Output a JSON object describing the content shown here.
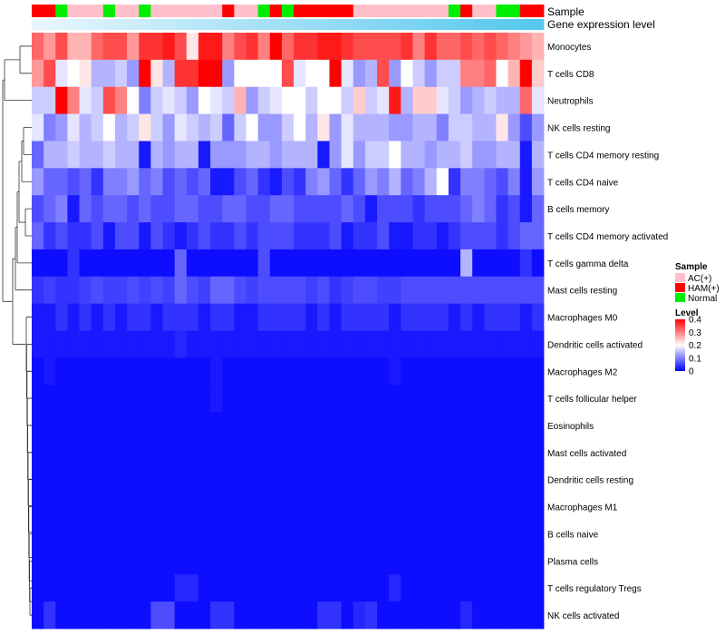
{
  "chart_data": {
    "type": "heatmap",
    "title": "",
    "xlabel": "",
    "ylabel": "",
    "annotation_rows": [
      "Sample",
      "Gene expression level"
    ],
    "sample_annotation": [
      "HAM(+)",
      "HAM(+)",
      "Normal",
      "AC(+)",
      "AC(+)",
      "AC(+)",
      "Normal",
      "AC(+)",
      "AC(+)",
      "Normal",
      "AC(+)",
      "AC(+)",
      "AC(+)",
      "AC(+)",
      "AC(+)",
      "AC(+)",
      "HAM(+)",
      "AC(+)",
      "AC(+)",
      "Normal",
      "HAM(+)",
      "Normal",
      "HAM(+)",
      "HAM(+)",
      "HAM(+)",
      "HAM(+)",
      "HAM(+)",
      "AC(+)",
      "AC(+)",
      "AC(+)",
      "AC(+)",
      "AC(+)",
      "AC(+)",
      "AC(+)",
      "AC(+)",
      "Normal",
      "HAM(+)",
      "AC(+)",
      "AC(+)",
      "Normal",
      "Normal",
      "HAM(+)",
      "HAM(+)"
    ],
    "rows": [
      "Monocytes",
      "T cells CD8",
      "Neutrophils",
      "NK cells resting",
      "T cells CD4 memory resting",
      "T cells CD4 naive",
      "B cells memory",
      "T cells CD4 memory activated",
      "T cells gamma delta",
      "Mast cells resting",
      "Macrophages M0",
      "Dendritic cells activated",
      "Macrophages M2",
      "T cells follicular helper",
      "Eosinophils",
      "Mast cells activated",
      "Dendritic cells resting",
      "Macrophages M1",
      "B cells naive",
      "Plasma cells",
      "T cells regulatory  Tregs",
      "NK cells activated"
    ],
    "color_scale": {
      "min": 0,
      "max": 0.4,
      "low": "#0000ff",
      "mid": "#ffffff",
      "high": "#ff0000",
      "mid_value": 0.2
    },
    "values": [
      [
        0.32,
        0.28,
        0.34,
        0.26,
        0.26,
        0.32,
        0.34,
        0.34,
        0.28,
        0.36,
        0.36,
        0.38,
        0.34,
        0.22,
        0.38,
        0.38,
        0.3,
        0.34,
        0.36,
        0.3,
        0.4,
        0.32,
        0.36,
        0.36,
        0.38,
        0.38,
        0.36,
        0.34,
        0.34,
        0.34,
        0.34,
        0.36,
        0.3,
        0.36,
        0.32,
        0.32,
        0.34,
        0.32,
        0.34,
        0.32,
        0.3,
        0.28,
        0.26
      ],
      [
        0.28,
        0.34,
        0.18,
        0.2,
        0.22,
        0.14,
        0.14,
        0.16,
        0.12,
        0.4,
        0.22,
        0.14,
        0.36,
        0.36,
        0.4,
        0.4,
        0.12,
        0.2,
        0.2,
        0.2,
        0.2,
        0.34,
        0.18,
        0.2,
        0.2,
        0.4,
        0.18,
        0.12,
        0.14,
        0.34,
        0.12,
        0.2,
        0.16,
        0.12,
        0.16,
        0.16,
        0.3,
        0.3,
        0.32,
        0.2,
        0.26,
        0.4,
        0.24
      ],
      [
        0.16,
        0.16,
        0.4,
        0.3,
        0.18,
        0.16,
        0.34,
        0.3,
        0.2,
        0.1,
        0.16,
        0.18,
        0.16,
        0.12,
        0.2,
        0.18,
        0.16,
        0.26,
        0.12,
        0.16,
        0.18,
        0.2,
        0.2,
        0.16,
        0.2,
        0.2,
        0.16,
        0.24,
        0.16,
        0.18,
        0.38,
        0.14,
        0.24,
        0.24,
        0.18,
        0.16,
        0.12,
        0.14,
        0.16,
        0.14,
        0.14,
        0.32,
        0.18
      ],
      [
        0.18,
        0.1,
        0.12,
        0.18,
        0.14,
        0.16,
        0.2,
        0.14,
        0.16,
        0.22,
        0.16,
        0.12,
        0.18,
        0.16,
        0.14,
        0.16,
        0.08,
        0.16,
        0.2,
        0.12,
        0.12,
        0.16,
        0.2,
        0.14,
        0.22,
        0.12,
        0.18,
        0.14,
        0.14,
        0.14,
        0.12,
        0.12,
        0.14,
        0.14,
        0.1,
        0.16,
        0.16,
        0.14,
        0.14,
        0.22,
        0.12,
        0.06,
        0.12
      ],
      [
        0.08,
        0.14,
        0.14,
        0.16,
        0.14,
        0.14,
        0.16,
        0.14,
        0.14,
        0.02,
        0.14,
        0.12,
        0.14,
        0.14,
        0.02,
        0.12,
        0.12,
        0.12,
        0.14,
        0.14,
        0.12,
        0.14,
        0.14,
        0.14,
        0.02,
        0.12,
        0.18,
        0.12,
        0.16,
        0.16,
        0.2,
        0.14,
        0.14,
        0.12,
        0.14,
        0.14,
        0.16,
        0.12,
        0.12,
        0.14,
        0.14,
        0.02,
        0.14
      ],
      [
        0.12,
        0.08,
        0.08,
        0.06,
        0.08,
        0.04,
        0.1,
        0.1,
        0.12,
        0.08,
        0.1,
        0.06,
        0.08,
        0.06,
        0.08,
        0.02,
        0.02,
        0.06,
        0.08,
        0.04,
        0.02,
        0.06,
        0.04,
        0.1,
        0.12,
        0.08,
        0.04,
        0.08,
        0.12,
        0.1,
        0.14,
        0.08,
        0.1,
        0.14,
        0.2,
        0.04,
        0.1,
        0.1,
        0.08,
        0.06,
        0.1,
        0.02,
        0.12
      ],
      [
        0.06,
        0.08,
        0.1,
        0.02,
        0.08,
        0.06,
        0.08,
        0.08,
        0.06,
        0.08,
        0.06,
        0.06,
        0.08,
        0.08,
        0.06,
        0.06,
        0.08,
        0.08,
        0.06,
        0.06,
        0.08,
        0.08,
        0.06,
        0.06,
        0.06,
        0.06,
        0.08,
        0.06,
        0.02,
        0.06,
        0.06,
        0.06,
        0.04,
        0.06,
        0.06,
        0.06,
        0.08,
        0.1,
        0.08,
        0.04,
        0.06,
        0.02,
        0.08
      ],
      [
        0.08,
        0.04,
        0.06,
        0.04,
        0.04,
        0.06,
        0.02,
        0.06,
        0.06,
        0.02,
        0.06,
        0.04,
        0.02,
        0.04,
        0.06,
        0.04,
        0.04,
        0.06,
        0.04,
        0.06,
        0.06,
        0.06,
        0.04,
        0.04,
        0.04,
        0.06,
        0.02,
        0.04,
        0.04,
        0.06,
        0.02,
        0.02,
        0.04,
        0.04,
        0.02,
        0.04,
        0.06,
        0.06,
        0.06,
        0.04,
        0.06,
        0.08,
        0.08
      ],
      [
        0.01,
        0.01,
        0.01,
        0.04,
        0.01,
        0.01,
        0.01,
        0.01,
        0.01,
        0.01,
        0.01,
        0.01,
        0.08,
        0.01,
        0.01,
        0.01,
        0.01,
        0.01,
        0.01,
        0.06,
        0.01,
        0.01,
        0.01,
        0.01,
        0.01,
        0.01,
        0.01,
        0.01,
        0.01,
        0.01,
        0.01,
        0.01,
        0.01,
        0.01,
        0.01,
        0.01,
        0.14,
        0.01,
        0.01,
        0.01,
        0.01,
        0.04,
        0.01
      ],
      [
        0.04,
        0.05,
        0.04,
        0.04,
        0.05,
        0.06,
        0.05,
        0.05,
        0.06,
        0.05,
        0.06,
        0.05,
        0.08,
        0.06,
        0.05,
        0.08,
        0.08,
        0.06,
        0.05,
        0.06,
        0.06,
        0.06,
        0.06,
        0.05,
        0.06,
        0.04,
        0.05,
        0.06,
        0.06,
        0.05,
        0.05,
        0.06,
        0.06,
        0.06,
        0.06,
        0.06,
        0.06,
        0.06,
        0.06,
        0.06,
        0.06,
        0.06,
        0.06
      ],
      [
        0.02,
        0.02,
        0.04,
        0.02,
        0.04,
        0.02,
        0.04,
        0.02,
        0.04,
        0.04,
        0.02,
        0.04,
        0.04,
        0.04,
        0.02,
        0.04,
        0.04,
        0.02,
        0.02,
        0.04,
        0.04,
        0.04,
        0.04,
        0.02,
        0.04,
        0.02,
        0.04,
        0.04,
        0.04,
        0.04,
        0.02,
        0.04,
        0.04,
        0.04,
        0.04,
        0.02,
        0.04,
        0.02,
        0.04,
        0.04,
        0.04,
        0.02,
        0.04
      ],
      [
        0.02,
        0.02,
        0.02,
        0.02,
        0.02,
        0.02,
        0.02,
        0.02,
        0.02,
        0.02,
        0.02,
        0.02,
        0.03,
        0.02,
        0.02,
        0.02,
        0.02,
        0.02,
        0.02,
        0.02,
        0.02,
        0.02,
        0.02,
        0.02,
        0.02,
        0.02,
        0.02,
        0.02,
        0.02,
        0.02,
        0.02,
        0.02,
        0.02,
        0.02,
        0.02,
        0.02,
        0.02,
        0.02,
        0.02,
        0.02,
        0.02,
        0.02,
        0.02
      ],
      [
        0.01,
        0.02,
        0.01,
        0.01,
        0.01,
        0.01,
        0.01,
        0.01,
        0.01,
        0.01,
        0.01,
        0.01,
        0.01,
        0.01,
        0.01,
        0.02,
        0.01,
        0.01,
        0.01,
        0.01,
        0.01,
        0.01,
        0.01,
        0.01,
        0.01,
        0.01,
        0.01,
        0.01,
        0.01,
        0.01,
        0.02,
        0.01,
        0.01,
        0.01,
        0.01,
        0.01,
        0.01,
        0.01,
        0.01,
        0.01,
        0.01,
        0.01,
        0.01
      ],
      [
        0.01,
        0.01,
        0.01,
        0.01,
        0.01,
        0.01,
        0.01,
        0.01,
        0.01,
        0.01,
        0.01,
        0.01,
        0.01,
        0.01,
        0.01,
        0.02,
        0.01,
        0.01,
        0.01,
        0.01,
        0.01,
        0.01,
        0.01,
        0.01,
        0.01,
        0.01,
        0.01,
        0.01,
        0.01,
        0.01,
        0.01,
        0.01,
        0.01,
        0.01,
        0.01,
        0.01,
        0.01,
        0.01,
        0.01,
        0.01,
        0.01,
        0.01,
        0.01
      ],
      [
        0.01,
        0.01,
        0.01,
        0.01,
        0.01,
        0.01,
        0.01,
        0.01,
        0.01,
        0.01,
        0.01,
        0.01,
        0.01,
        0.01,
        0.01,
        0.01,
        0.01,
        0.01,
        0.01,
        0.01,
        0.01,
        0.01,
        0.01,
        0.01,
        0.01,
        0.01,
        0.01,
        0.01,
        0.01,
        0.01,
        0.01,
        0.01,
        0.01,
        0.01,
        0.01,
        0.01,
        0.01,
        0.01,
        0.01,
        0.01,
        0.01,
        0.01,
        0.01
      ],
      [
        0.01,
        0.01,
        0.01,
        0.01,
        0.01,
        0.01,
        0.01,
        0.01,
        0.01,
        0.01,
        0.01,
        0.01,
        0.01,
        0.01,
        0.01,
        0.01,
        0.01,
        0.01,
        0.01,
        0.01,
        0.01,
        0.01,
        0.01,
        0.01,
        0.01,
        0.01,
        0.01,
        0.01,
        0.01,
        0.01,
        0.01,
        0.01,
        0.01,
        0.01,
        0.01,
        0.01,
        0.01,
        0.01,
        0.01,
        0.01,
        0.01,
        0.01,
        0.01
      ],
      [
        0.01,
        0.01,
        0.01,
        0.01,
        0.01,
        0.01,
        0.01,
        0.01,
        0.01,
        0.01,
        0.01,
        0.01,
        0.01,
        0.01,
        0.01,
        0.01,
        0.01,
        0.01,
        0.01,
        0.01,
        0.01,
        0.01,
        0.01,
        0.01,
        0.01,
        0.01,
        0.01,
        0.01,
        0.01,
        0.01,
        0.01,
        0.01,
        0.01,
        0.01,
        0.01,
        0.01,
        0.01,
        0.01,
        0.01,
        0.01,
        0.01,
        0.01,
        0.01
      ],
      [
        0.01,
        0.01,
        0.01,
        0.01,
        0.01,
        0.01,
        0.01,
        0.01,
        0.01,
        0.01,
        0.01,
        0.01,
        0.01,
        0.01,
        0.01,
        0.01,
        0.01,
        0.01,
        0.01,
        0.01,
        0.01,
        0.01,
        0.01,
        0.01,
        0.01,
        0.01,
        0.01,
        0.01,
        0.01,
        0.01,
        0.01,
        0.01,
        0.01,
        0.01,
        0.01,
        0.01,
        0.01,
        0.01,
        0.01,
        0.01,
        0.01,
        0.01,
        0.01
      ],
      [
        0.01,
        0.01,
        0.01,
        0.01,
        0.01,
        0.01,
        0.01,
        0.01,
        0.01,
        0.01,
        0.01,
        0.01,
        0.01,
        0.01,
        0.01,
        0.01,
        0.01,
        0.01,
        0.01,
        0.01,
        0.01,
        0.01,
        0.01,
        0.01,
        0.01,
        0.01,
        0.01,
        0.01,
        0.01,
        0.01,
        0.01,
        0.01,
        0.01,
        0.01,
        0.01,
        0.01,
        0.01,
        0.01,
        0.01,
        0.01,
        0.01,
        0.01,
        0.01
      ],
      [
        0.01,
        0.01,
        0.01,
        0.01,
        0.01,
        0.01,
        0.01,
        0.01,
        0.01,
        0.01,
        0.01,
        0.01,
        0.01,
        0.01,
        0.01,
        0.01,
        0.01,
        0.01,
        0.01,
        0.01,
        0.01,
        0.01,
        0.01,
        0.01,
        0.01,
        0.01,
        0.01,
        0.01,
        0.01,
        0.01,
        0.01,
        0.01,
        0.01,
        0.01,
        0.01,
        0.01,
        0.01,
        0.01,
        0.01,
        0.01,
        0.01,
        0.01,
        0.01
      ],
      [
        0.01,
        0.01,
        0.01,
        0.01,
        0.01,
        0.01,
        0.01,
        0.01,
        0.01,
        0.01,
        0.01,
        0.01,
        0.03,
        0.03,
        0.01,
        0.01,
        0.01,
        0.01,
        0.01,
        0.01,
        0.01,
        0.01,
        0.01,
        0.01,
        0.01,
        0.01,
        0.01,
        0.01,
        0.01,
        0.01,
        0.03,
        0.01,
        0.01,
        0.01,
        0.01,
        0.01,
        0.01,
        0.01,
        0.01,
        0.01,
        0.01,
        0.01,
        0.01
      ],
      [
        0.01,
        0.04,
        0.01,
        0.01,
        0.01,
        0.01,
        0.01,
        0.01,
        0.01,
        0.01,
        0.06,
        0.06,
        0.01,
        0.01,
        0.01,
        0.04,
        0.04,
        0.01,
        0.01,
        0.01,
        0.01,
        0.01,
        0.01,
        0.01,
        0.04,
        0.04,
        0.01,
        0.03,
        0.04,
        0.01,
        0.01,
        0.01,
        0.01,
        0.01,
        0.01,
        0.01,
        0.03,
        0.01,
        0.01,
        0.01,
        0.01,
        0.01,
        0.01
      ]
    ],
    "legend": {
      "sample_title": "Sample",
      "sample_entries": [
        {
          "label": "AC(+)",
          "color": "#ffc0cb"
        },
        {
          "label": "HAM(+)",
          "color": "#ff0000"
        },
        {
          "label": "Normal",
          "color": "#00ee00"
        }
      ],
      "level_title": "Level",
      "level_ticks": [
        "0.4",
        "0.3",
        "0.2",
        "0.1",
        "0"
      ],
      "level_tick_values": [
        0.4,
        0.3,
        0.2,
        0.1,
        0
      ]
    },
    "expression_bar_colors": {
      "start": "#e8f6fc",
      "end": "#56c8ee"
    }
  }
}
